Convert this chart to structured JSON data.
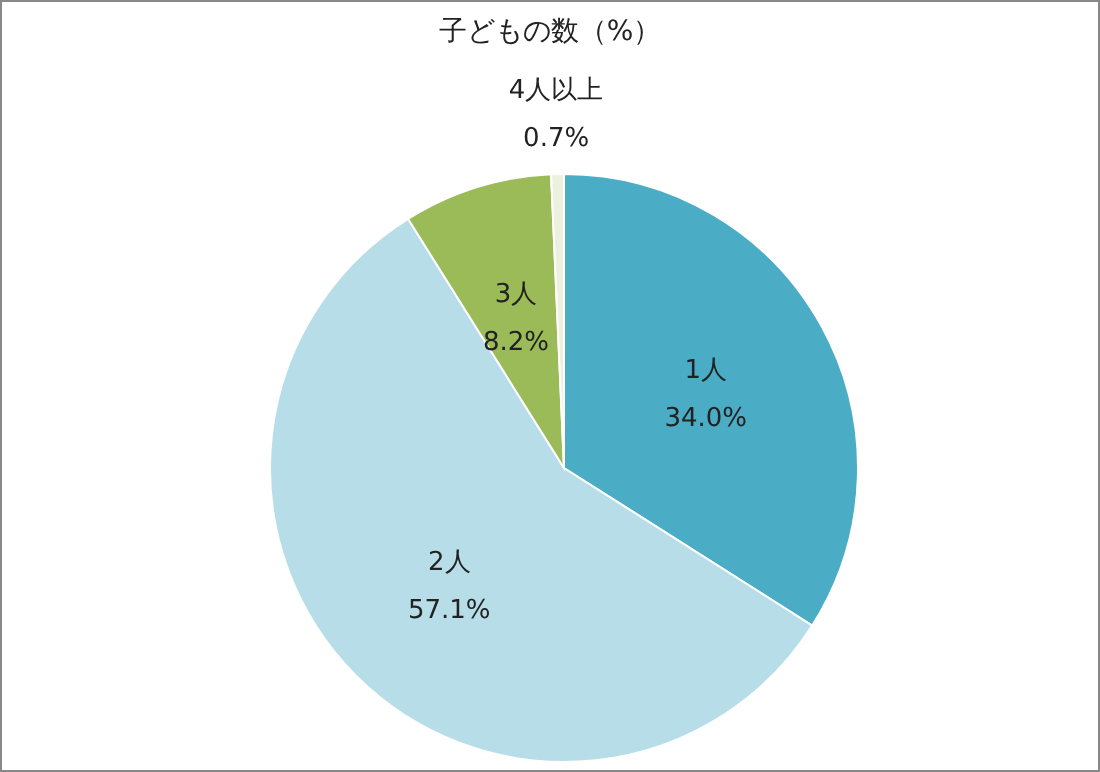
{
  "chart_data": {
    "type": "pie",
    "title": "子どもの数（%）",
    "categories": [
      "1人",
      "2人",
      "3人",
      "4人以上"
    ],
    "values": [
      34.0,
      57.1,
      8.2,
      0.7
    ],
    "value_labels": [
      "34.0%",
      "57.1%",
      "8.2%",
      "0.7%"
    ],
    "colors": [
      "#4bacc6",
      "#b7dee8",
      "#9bbb59",
      "#ebf1de"
    ]
  }
}
